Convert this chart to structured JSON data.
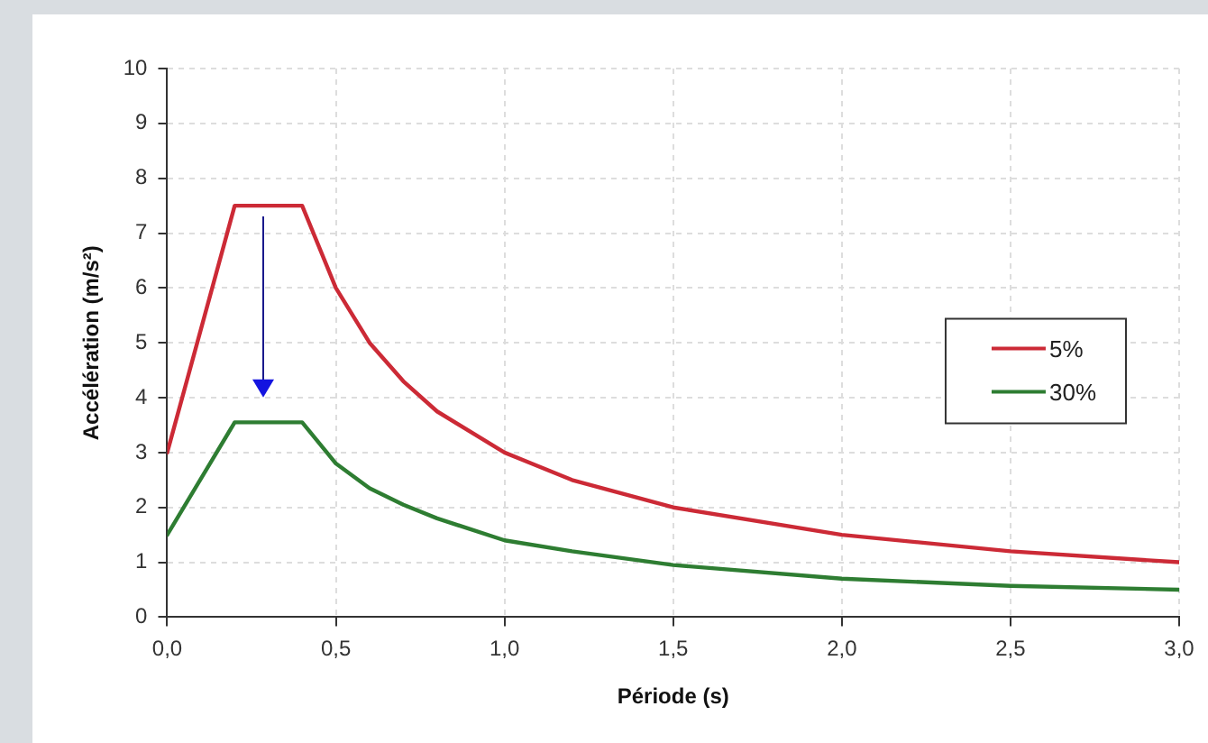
{
  "chart_data": {
    "type": "line",
    "xlabel": "Période (s)",
    "ylabel": "Accélération (m/s²)",
    "x": [
      0,
      0.2,
      0.4,
      0.5,
      0.6,
      0.7,
      0.8,
      1.0,
      1.2,
      1.5,
      2.0,
      2.5,
      3.0
    ],
    "series": [
      {
        "name": "5%",
        "color": "#cc2a36",
        "values": [
          3,
          7.5,
          7.5,
          6,
          5,
          4.3,
          3.75,
          3,
          2.5,
          2,
          1.5,
          1.2,
          1.0
        ]
      },
      {
        "name": "30%",
        "color": "#2e7d32",
        "values": [
          1.5,
          3.55,
          3.55,
          2.8,
          2.35,
          2.05,
          1.8,
          1.4,
          1.2,
          0.95,
          0.7,
          0.57,
          0.5
        ]
      }
    ],
    "xlim": [
      0,
      3
    ],
    "xticks": [
      {
        "value": 0,
        "label": "0,0"
      },
      {
        "value": 0.5,
        "label": "0,5"
      },
      {
        "value": 1,
        "label": "1,0"
      },
      {
        "value": 1.5,
        "label": "1,5"
      },
      {
        "value": 2,
        "label": "2,0"
      },
      {
        "value": 2.5,
        "label": "2,5"
      },
      {
        "value": 3,
        "label": "3,0"
      }
    ],
    "ylim": [
      0,
      10
    ],
    "yticks": [
      0,
      1,
      2,
      3,
      4,
      5,
      6,
      7,
      8,
      9,
      10
    ],
    "grid": true,
    "legend": "right",
    "marker": "none",
    "line_style": "solid"
  }
}
